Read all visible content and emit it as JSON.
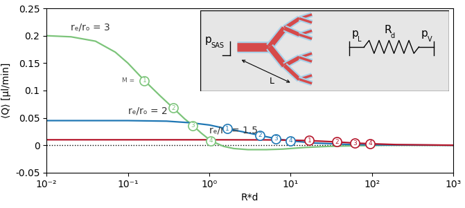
{
  "chart_data": {
    "type": "line",
    "x_label": "R*d",
    "y_label": "⟨Q⟩ [μl/min]",
    "log": "x",
    "grid": false,
    "xlim": [
      0.01,
      1000
    ],
    "ylim": [
      -0.05,
      0.25
    ],
    "xticks": [
      {
        "value": 0.01,
        "label": "10⁻²"
      },
      {
        "value": 0.1,
        "label": "10⁻¹"
      },
      {
        "value": 1,
        "label": "10⁰"
      },
      {
        "value": 10,
        "label": "10¹"
      },
      {
        "value": 100,
        "label": "10²"
      },
      {
        "value": 1000,
        "label": "10³"
      }
    ],
    "yticks": [
      -0.05,
      0,
      0.05,
      0.1,
      0.15,
      0.2,
      0.25
    ],
    "hlines": [
      0
    ],
    "series": [
      {
        "name": "rₑ/rₒ = 3",
        "color": "#7cc47a",
        "line_style": "solid",
        "x": [
          0.01,
          0.02,
          0.04,
          0.07,
          0.1,
          0.16,
          0.25,
          0.36,
          0.5,
          0.63,
          0.8,
          1.05,
          1.5,
          2,
          3,
          5,
          8,
          15,
          30,
          60,
          150,
          1000
        ],
        "values": [
          0.2,
          0.198,
          0.19,
          0.17,
          0.15,
          0.118,
          0.09,
          0.068,
          0.048,
          0.036,
          0.022,
          0.008,
          -0.002,
          -0.006,
          -0.008,
          -0.008,
          -0.007,
          -0.004,
          -0.002,
          -0.001,
          0.0,
          0.0
        ],
        "markers": {
          "x": [
            0.16,
            0.36,
            0.63,
            1.05
          ],
          "values": [
            0.118,
            0.068,
            0.036,
            0.008
          ],
          "labels": [
            "1",
            "2",
            "3",
            "4"
          ]
        }
      },
      {
        "name": "rₑ/rₒ = 2",
        "color": "#1f77b4",
        "line_style": "solid",
        "x": [
          0.01,
          0.1,
          0.3,
          0.6,
          1,
          1.66,
          2.5,
          4.2,
          6.6,
          10,
          20,
          50,
          100,
          1000
        ],
        "values": [
          0.045,
          0.045,
          0.044,
          0.041,
          0.037,
          0.03,
          0.025,
          0.018,
          0.012,
          0.008,
          0.004,
          0.0015,
          0.0007,
          0.0
        ],
        "markers": {
          "x": [
            1.66,
            4.2,
            6.6,
            10
          ],
          "values": [
            0.03,
            0.018,
            0.012,
            0.008
          ],
          "labels": [
            "1",
            "2",
            "3",
            "4"
          ]
        }
      },
      {
        "name": "rₑ/rₒ = 1.5",
        "color": "#b5162b",
        "line_style": "solid",
        "x": [
          0.01,
          1,
          5,
          10,
          17,
          37,
          62,
          95,
          200,
          1000
        ],
        "values": [
          0.01,
          0.01,
          0.0098,
          0.0093,
          0.0085,
          0.006,
          0.004,
          0.0028,
          0.0012,
          0.0001
        ],
        "markers": {
          "x": [
            17,
            37,
            62,
            95
          ],
          "values": [
            0.0085,
            0.006,
            0.004,
            0.0028
          ],
          "labels": [
            "1",
            "2",
            "3",
            "4"
          ]
        }
      }
    ],
    "marker_annotation": "M =",
    "inset": {
      "left_pressure": {
        "symbol": "p",
        "sub": "SAS"
      },
      "start_pressure": {
        "symbol": "p",
        "sub": "L"
      },
      "resistance": {
        "symbol": "R",
        "sub": "d"
      },
      "end_pressure": {
        "symbol": "p",
        "sub": "V"
      },
      "length": "L"
    }
  }
}
